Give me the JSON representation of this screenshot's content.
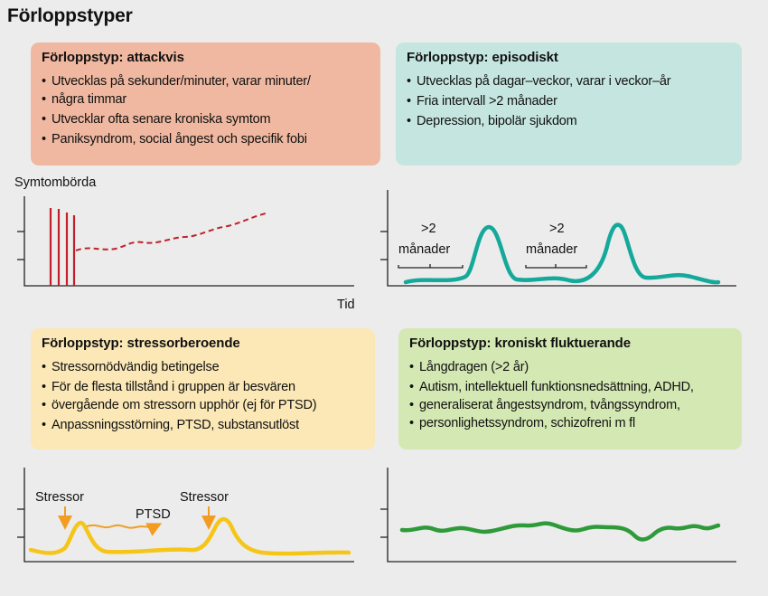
{
  "title": "Förloppstyper",
  "boxes": {
    "attackvis": {
      "title": "Förloppstyp: attackvis",
      "items": [
        "Utvecklas på sekunder/minuter, varar minuter/",
        "några timmar",
        "Utvecklar ofta senare kroniska symtom",
        "Paniksyndrom, social ångest och specifik fobi"
      ]
    },
    "episodiskt": {
      "title": "Förloppstyp: episodiskt",
      "items": [
        "Utvecklas på dagar–veckor, varar i veckor–år",
        "Fria intervall >2 månader",
        "Depression, bipolär sjukdom"
      ]
    },
    "stressor": {
      "title": "Förloppstyp: stressorberoende",
      "items": [
        "Stressornödvändig betingelse",
        "För de flesta tillstånd i gruppen är besvären",
        "övergående om stressorn upphör (ej för PTSD)",
        "Anpassningsstörning, PTSD, substansutlöst"
      ]
    },
    "kroniskt": {
      "title": "Förloppstyp: kroniskt fluktuerande",
      "items": [
        "Långdragen (>2 år)",
        "Autism, intellektuell funktionsnedsättning, ADHD,",
        "generaliserat ångestsyndrom, tvångssyndrom,",
        "personlighetssyndrom, schizofreni m fl"
      ]
    }
  },
  "graphs": {
    "ylabel": "Symtombörda",
    "xlabel": "Tid",
    "interval_top": ">2",
    "interval_bottom": "månader",
    "stressor_label": "Stressor",
    "ptsd_label": "PTSD"
  },
  "colors": {
    "attackvis": "#c0202a",
    "episodiskt": "#14a99a",
    "stressor": "#f5c518",
    "stressor_arrow": "#f29d22",
    "kroniskt": "#2e9a3a"
  }
}
